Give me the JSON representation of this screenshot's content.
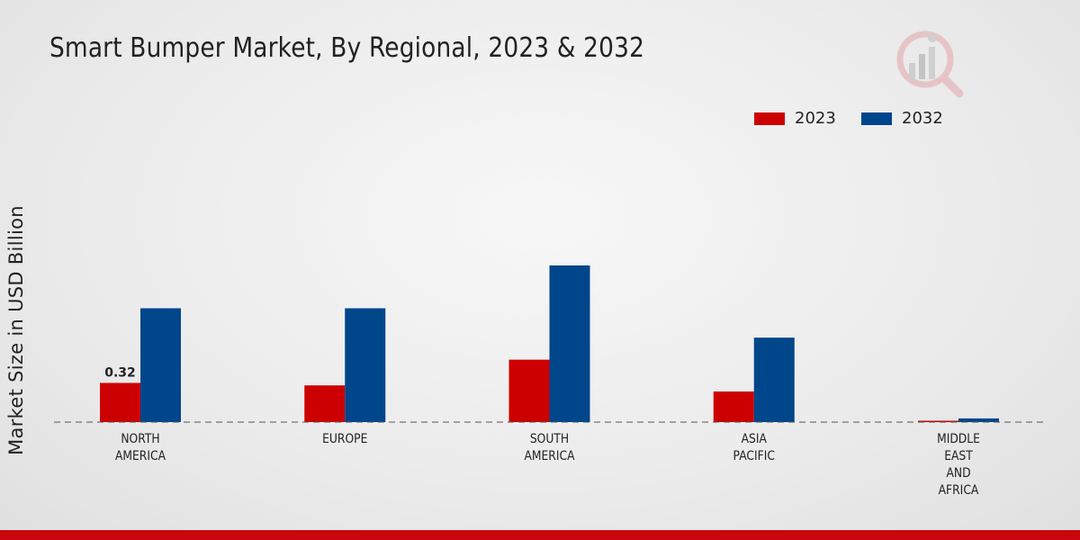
{
  "title": "Smart Bumper Market, By Regional, 2023 & 2032",
  "chart_data": {
    "type": "bar",
    "title": "Smart Bumper Market, By Regional, 2023 & 2032",
    "xlabel": "",
    "ylabel": "Market Size in USD Billion",
    "categories": [
      [
        "NORTH",
        "AMERICA"
      ],
      [
        "EUROPE"
      ],
      [
        "SOUTH",
        "AMERICA"
      ],
      [
        "ASIA",
        "PACIFIC"
      ],
      [
        "MIDDLE",
        "EAST",
        "AND",
        "AFRICA"
      ]
    ],
    "series": [
      {
        "name": "2023",
        "color": "#cc0000",
        "values": [
          0.32,
          0.3,
          0.51,
          0.25,
          0.01
        ]
      },
      {
        "name": "2032",
        "color": "#00468b",
        "values": [
          0.93,
          0.93,
          1.28,
          0.69,
          0.03
        ]
      }
    ],
    "data_labels": [
      {
        "series": 0,
        "index": 0,
        "text": "0.32"
      }
    ],
    "ylim": [
      0,
      2.5
    ],
    "grid": false,
    "legend": "top-right"
  },
  "colors": {
    "accent": "#c8070f",
    "series_2023": "#cc0000",
    "series_2032": "#00468b"
  },
  "logo": {
    "icon": "market-research-logo-icon"
  }
}
